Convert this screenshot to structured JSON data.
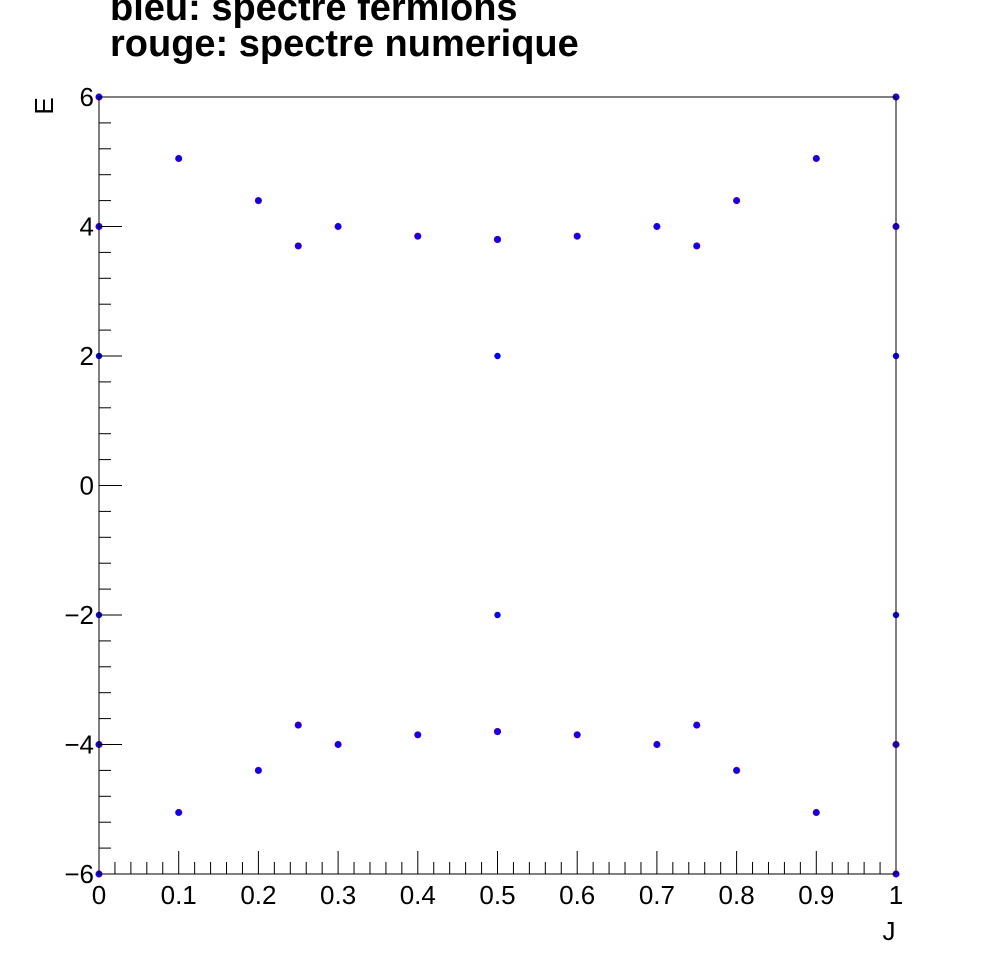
{
  "chart_data": {
    "type": "scatter",
    "title_lines": [
      "bleu: spectre fermions",
      "rouge: spectre numerique"
    ],
    "xlabel": "J",
    "ylabel": "E",
    "xlim": [
      0,
      1
    ],
    "ylim": [
      -6,
      6
    ],
    "x_ticks": [
      0,
      0.1,
      0.2,
      0.3,
      0.4,
      0.5,
      0.6,
      0.7,
      0.8,
      0.9,
      1
    ],
    "x_tick_labels": [
      "0",
      "0.1",
      "0.2",
      "0.3",
      "0.4",
      "0.5",
      "0.6",
      "0.7",
      "0.8",
      "0.9",
      "1"
    ],
    "y_ticks": [
      -6,
      -4,
      -2,
      0,
      2,
      4,
      6
    ],
    "y_tick_labels": [
      "−6",
      "−4",
      "−2",
      "0",
      "2",
      "4",
      "6"
    ],
    "grid": false,
    "legend": "none",
    "series": [
      {
        "color": "#ff0000",
        "x": [
          0,
          0.1,
          0.2,
          0.3,
          0.4,
          0.5,
          0.6,
          0.7,
          0.8,
          0.9,
          1,
          0,
          0.1,
          0.2,
          0.3,
          0.4,
          0.5,
          0.6,
          0.7,
          0.8,
          0.9,
          1,
          0,
          0.25,
          0.5,
          0.75,
          1,
          0,
          0.25,
          0.5,
          0.75,
          1
        ],
        "y": [
          6,
          5.05,
          4.4,
          4.0,
          3.85,
          3.8,
          3.85,
          4.0,
          4.4,
          5.05,
          6,
          -6,
          -5.05,
          -4.4,
          -4.0,
          -3.85,
          -3.8,
          -3.85,
          -4.0,
          -4.4,
          -5.05,
          -6,
          4,
          3.7,
          3.8,
          3.7,
          4,
          -4,
          -3.7,
          -3.8,
          -3.7,
          -4
        ]
      },
      {
        "color": "#0000ff",
        "x": [
          0,
          0.1,
          0.2,
          0.3,
          0.4,
          0.5,
          0.6,
          0.7,
          0.8,
          0.9,
          1,
          0,
          0.1,
          0.2,
          0.3,
          0.4,
          0.5,
          0.6,
          0.7,
          0.8,
          0.9,
          1,
          0,
          0.25,
          0.5,
          0.75,
          1,
          0,
          0.25,
          0.5,
          0.75,
          1,
          0,
          0.5,
          1,
          0,
          0.5,
          1
        ],
        "y": [
          6,
          5.05,
          4.4,
          4.0,
          3.85,
          3.8,
          3.85,
          4.0,
          4.4,
          5.05,
          6,
          -6,
          -5.05,
          -4.4,
          -4.0,
          -3.85,
          -3.8,
          -3.85,
          -4.0,
          -4.4,
          -5.05,
          -6,
          4,
          3.7,
          3.8,
          3.7,
          4,
          -4,
          -3.7,
          -3.8,
          -3.7,
          -4,
          2,
          2,
          2,
          -2,
          -2,
          -2
        ]
      }
    ]
  }
}
